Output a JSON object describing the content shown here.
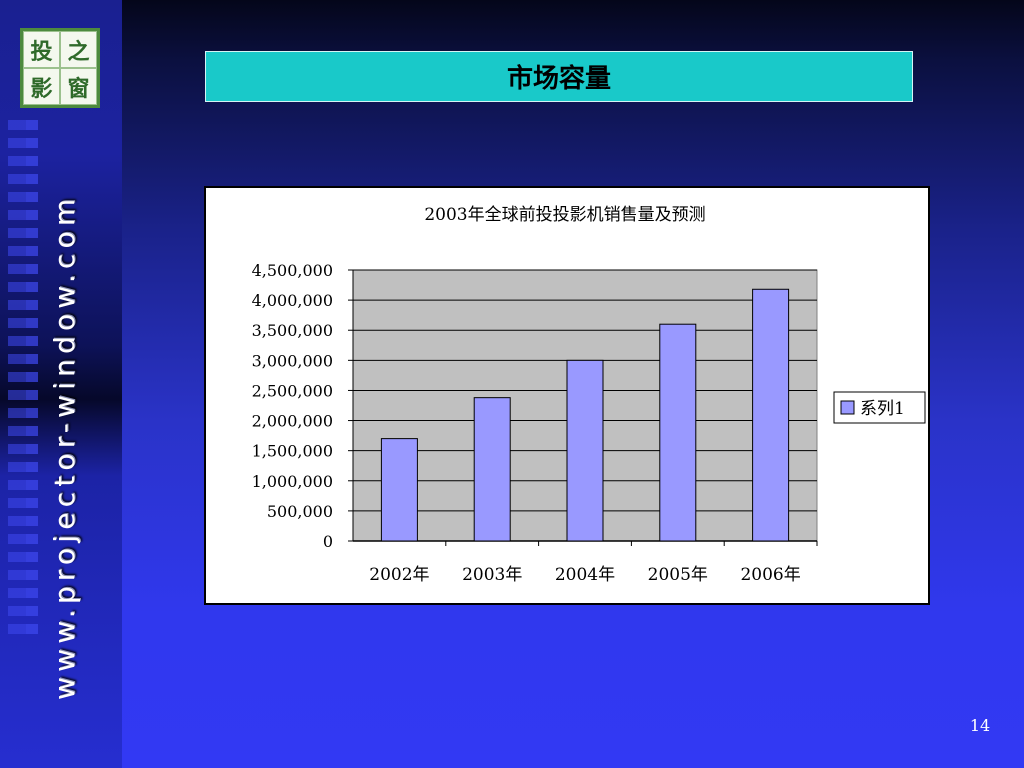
{
  "sidebar": {
    "logo_chars": [
      "投",
      "之",
      "影",
      "窗"
    ],
    "vertical_url": "www.projector-window.com"
  },
  "slide": {
    "title": "市场容量",
    "page_number": "14"
  },
  "chart_data": {
    "type": "bar",
    "title": "2003年全球前投投影机销售量及预测",
    "categories": [
      "2002年",
      "2003年",
      "2004年",
      "2005年",
      "2006年"
    ],
    "series": [
      {
        "name": "系列1",
        "values": [
          1700000,
          2380000,
          3000000,
          3600000,
          4180000
        ]
      }
    ],
    "ylim": [
      0,
      4500000
    ],
    "yticks": [
      "0",
      "500,000",
      "1,000,000",
      "1,500,000",
      "2,000,000",
      "2,500,000",
      "3,000,000",
      "3,500,000",
      "4,000,000",
      "4,500,000"
    ],
    "grid": true,
    "legend": "right",
    "colors": {
      "bar_fill": "#9999ff",
      "plot_bg": "#c0c0c0"
    }
  }
}
